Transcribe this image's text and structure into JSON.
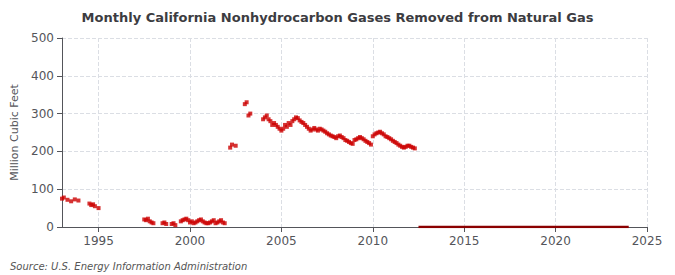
{
  "chart_data": {
    "type": "scatter",
    "title": "Monthly California Nonhydrocarbon Gases Removed from Natural Gas",
    "ylabel": "Million Cubic Feet",
    "annotations": [
      "Source: U.S. Energy Information Administration"
    ],
    "xlim": [
      1993,
      2025
    ],
    "xticks": [
      1995,
      2000,
      2005,
      2010,
      2015,
      2020,
      2025
    ],
    "ylim": [
      0,
      500
    ],
    "yticks": [
      0,
      100,
      200,
      300,
      400,
      500
    ],
    "grid": true,
    "series": [
      {
        "type": "scatter",
        "marker": "square",
        "color": "#CC0000",
        "x": [
          1993.0,
          1993.1,
          1993.3,
          1993.5,
          1993.7,
          1993.9,
          1994.5,
          1994.6,
          1994.7,
          1994.8,
          1995.0,
          1997.5,
          1997.6,
          1997.7,
          1997.8,
          1997.9,
          1998.0,
          1998.5,
          1998.6,
          1998.7,
          1999.0,
          1999.1,
          1999.2,
          1999.5,
          1999.6,
          1999.7,
          1999.8,
          1999.9,
          2000.0,
          2000.1,
          2000.2,
          2000.3,
          2000.4,
          2000.5,
          2000.6,
          2000.7,
          2000.8,
          2000.9,
          2001.0,
          2001.1,
          2001.2,
          2001.3,
          2001.4,
          2001.5,
          2001.6,
          2001.7,
          2001.8,
          2001.9,
          2002.2,
          2002.3,
          2002.5,
          2003.0,
          2003.1,
          2003.2,
          2003.3,
          2004.0,
          2004.1,
          2004.2,
          2004.3,
          2004.4,
          2004.5,
          2004.6,
          2004.7,
          2004.8,
          2004.9,
          2005.0,
          2005.1,
          2005.2,
          2005.3,
          2005.4,
          2005.5,
          2005.6,
          2005.7,
          2005.8,
          2005.9,
          2006.0,
          2006.1,
          2006.2,
          2006.3,
          2006.4,
          2006.5,
          2006.6,
          2006.7,
          2006.8,
          2006.9,
          2007.0,
          2007.1,
          2007.2,
          2007.3,
          2007.4,
          2007.5,
          2007.6,
          2007.7,
          2007.8,
          2007.9,
          2008.0,
          2008.1,
          2008.2,
          2008.3,
          2008.4,
          2008.5,
          2008.6,
          2008.7,
          2008.8,
          2008.9,
          2009.0,
          2009.1,
          2009.2,
          2009.3,
          2009.4,
          2009.5,
          2009.6,
          2009.7,
          2009.8,
          2009.9,
          2010.0,
          2010.1,
          2010.2,
          2010.3,
          2010.4,
          2010.5,
          2010.6,
          2010.7,
          2010.8,
          2010.9,
          2011.0,
          2011.1,
          2011.2,
          2011.3,
          2011.4,
          2011.5,
          2011.6,
          2011.7,
          2011.8,
          2011.9,
          2012.0,
          2012.1,
          2012.2,
          2012.3
        ],
        "values": [
          75,
          78,
          72,
          68,
          73,
          70,
          62,
          58,
          60,
          55,
          50,
          20,
          18,
          22,
          15,
          12,
          10,
          10,
          12,
          8,
          8,
          10,
          5,
          15,
          18,
          20,
          22,
          18,
          12,
          15,
          10,
          12,
          15,
          18,
          20,
          15,
          12,
          10,
          10,
          12,
          15,
          18,
          10,
          12,
          15,
          18,
          12,
          10,
          210,
          218,
          215,
          325,
          330,
          295,
          300,
          285,
          290,
          295,
          285,
          280,
          270,
          275,
          270,
          265,
          260,
          255,
          260,
          270,
          265,
          275,
          270,
          280,
          285,
          290,
          288,
          282,
          278,
          275,
          270,
          265,
          260,
          255,
          258,
          262,
          258,
          255,
          260,
          258,
          255,
          252,
          248,
          245,
          242,
          240,
          238,
          235,
          240,
          242,
          238,
          235,
          230,
          228,
          225,
          222,
          220,
          230,
          232,
          235,
          238,
          235,
          232,
          228,
          225,
          222,
          218,
          240,
          245,
          248,
          250,
          252,
          248,
          245,
          240,
          238,
          235,
          232,
          228,
          225,
          222,
          218,
          215,
          212,
          210,
          212,
          215,
          215,
          212,
          210,
          208
        ]
      },
      {
        "type": "line",
        "color": "#8B0000",
        "x": [
          2012.5,
          2024.0
        ],
        "values": [
          0,
          0
        ]
      }
    ]
  }
}
